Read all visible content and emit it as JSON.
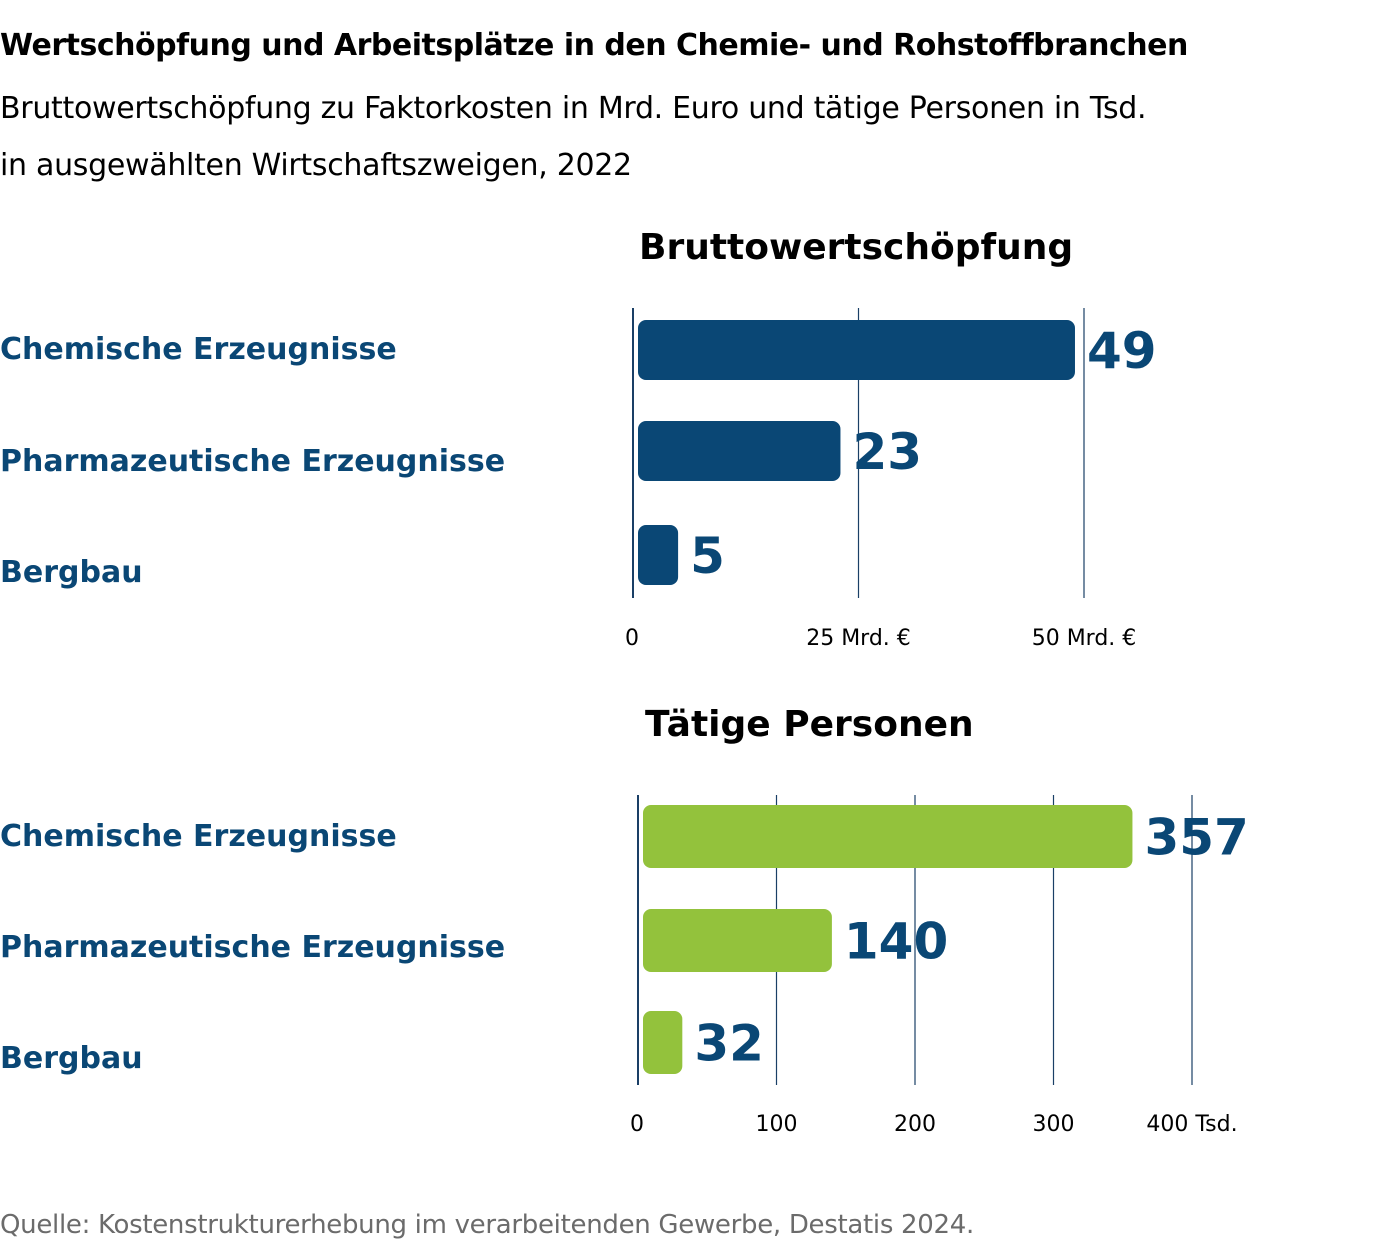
{
  "title": "Wertschöpfung und Arbeitsplätze in den Chemie- und Rohstoffbranchen",
  "subtitle_lines": [
    "Bruttowertschöpfung zu Faktorkosten in Mrd. Euro und tätige Personen in Tsd.",
    "in ausgewählten Wirtschaftszweigen, 2022"
  ],
  "source": "Quelle: Kostenstrukturerhebung im verarbeitenden Gewerbe, Destatis 2024.",
  "colors": {
    "dark_blue": "#0a4775",
    "green": "#93c23c",
    "grid": "#1a3f66"
  },
  "chart_data": [
    {
      "type": "bar",
      "orientation": "horizontal",
      "title": "Bruttowertschöpfung",
      "categories": [
        "Chemische Erzeugnisse",
        "Pharmazeutische Erzeugnisse",
        "Bergbau"
      ],
      "values": [
        49,
        23,
        5
      ],
      "value_labels": [
        "49",
        "23",
        "5"
      ],
      "xlim": [
        0,
        50
      ],
      "xticks": [
        0,
        25,
        50
      ],
      "xtick_labels": [
        "0",
        "25 Mrd. €",
        "50 Mrd. €"
      ],
      "grid": true,
      "bar_color": "#0a4775"
    },
    {
      "type": "bar",
      "orientation": "horizontal",
      "title": "Tätige Personen",
      "categories": [
        "Chemische Erzeugnisse",
        "Pharmazeutische Erzeugnisse",
        "Bergbau"
      ],
      "values": [
        357,
        140,
        32
      ],
      "value_labels": [
        "357",
        "140",
        "32"
      ],
      "xlim": [
        0,
        400
      ],
      "xticks": [
        0,
        100,
        200,
        300,
        400
      ],
      "xtick_labels": [
        "0",
        "100",
        "200",
        "300",
        "400 Tsd."
      ],
      "grid": true,
      "bar_color": "#93c23c"
    }
  ]
}
